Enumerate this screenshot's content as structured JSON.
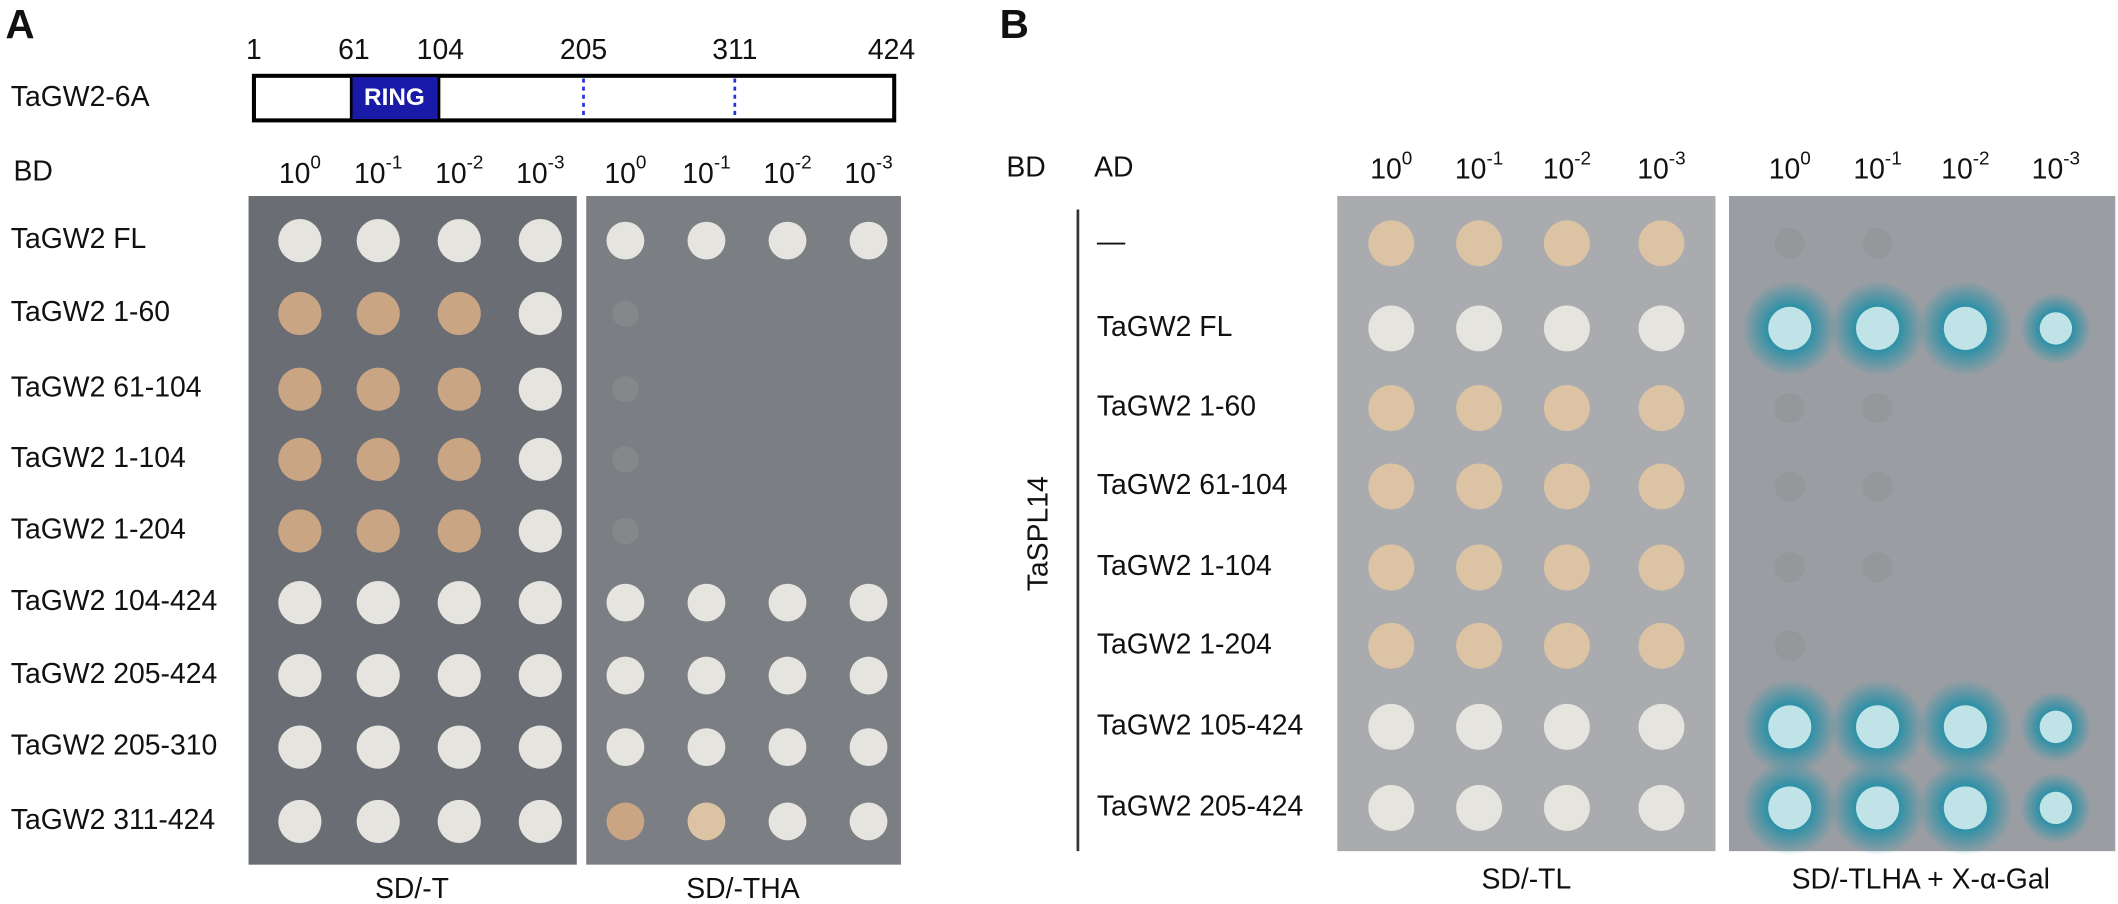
{
  "panel_a": {
    "label": "A",
    "construct": "TaGW2-6A",
    "positions": [
      "1",
      "61",
      "104",
      "205",
      "311",
      "424"
    ],
    "domain": "RING",
    "bd_label": "BD",
    "dilutions": [
      {
        "base": "10",
        "exp": "0"
      },
      {
        "base": "10",
        "exp": "-1"
      },
      {
        "base": "10",
        "exp": "-2"
      },
      {
        "base": "10",
        "exp": "-3"
      }
    ],
    "rows": [
      "TaGW2 FL",
      "TaGW2 1-60",
      "TaGW2 61-104",
      "TaGW2 1-104",
      "TaGW2 1-204",
      "TaGW2 104-424",
      "TaGW2 205-424",
      "TaGW2 205-310",
      "TaGW2 311-424"
    ],
    "plates": [
      "SD/-T",
      "SD/-THA"
    ]
  },
  "panel_b": {
    "label": "B",
    "bd_label": "BD",
    "ad_label": "AD",
    "bait": "TaSPL14",
    "dilutions": [
      {
        "base": "10",
        "exp": "0"
      },
      {
        "base": "10",
        "exp": "-1"
      },
      {
        "base": "10",
        "exp": "-2"
      },
      {
        "base": "10",
        "exp": "-3"
      }
    ],
    "rows": [
      "—",
      "TaGW2 FL",
      "TaGW2 1-60",
      "TaGW2 61-104",
      "TaGW2 1-104",
      "TaGW2 1-204",
      "TaGW2 105-424",
      "TaGW2 205-424"
    ],
    "plates": [
      "SD/-TL",
      "SD/-TLHA + X-α-Gal"
    ]
  }
}
